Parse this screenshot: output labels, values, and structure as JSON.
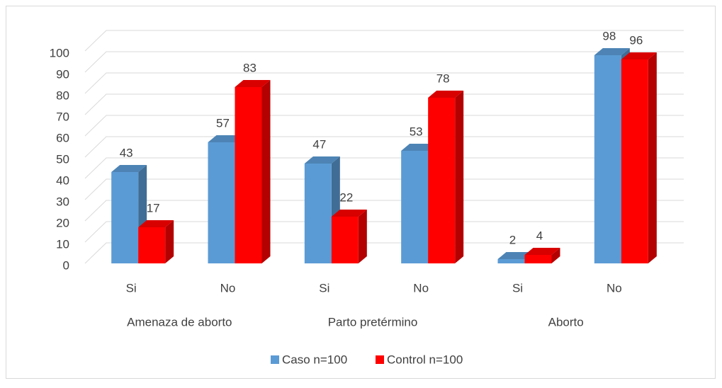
{
  "chart_data": {
    "type": "bar3d",
    "categories": [
      "Si",
      "No",
      "Si",
      "No",
      "Si",
      "No"
    ],
    "groups": [
      "Amenaza de aborto",
      "Parto pretérmino",
      "Aborto"
    ],
    "series": [
      {
        "name": "Caso n=100",
        "color": "#5b9bd5",
        "values": [
          43,
          57,
          47,
          53,
          2,
          98
        ]
      },
      {
        "name": "Control n=100",
        "color": "#ff0000",
        "values": [
          17,
          83,
          22,
          78,
          4,
          96
        ]
      }
    ],
    "ylim": [
      0,
      100
    ],
    "yticks": [
      0,
      10,
      20,
      30,
      40,
      50,
      60,
      70,
      80,
      90,
      100
    ],
    "grid": true,
    "legend": "bottom"
  }
}
